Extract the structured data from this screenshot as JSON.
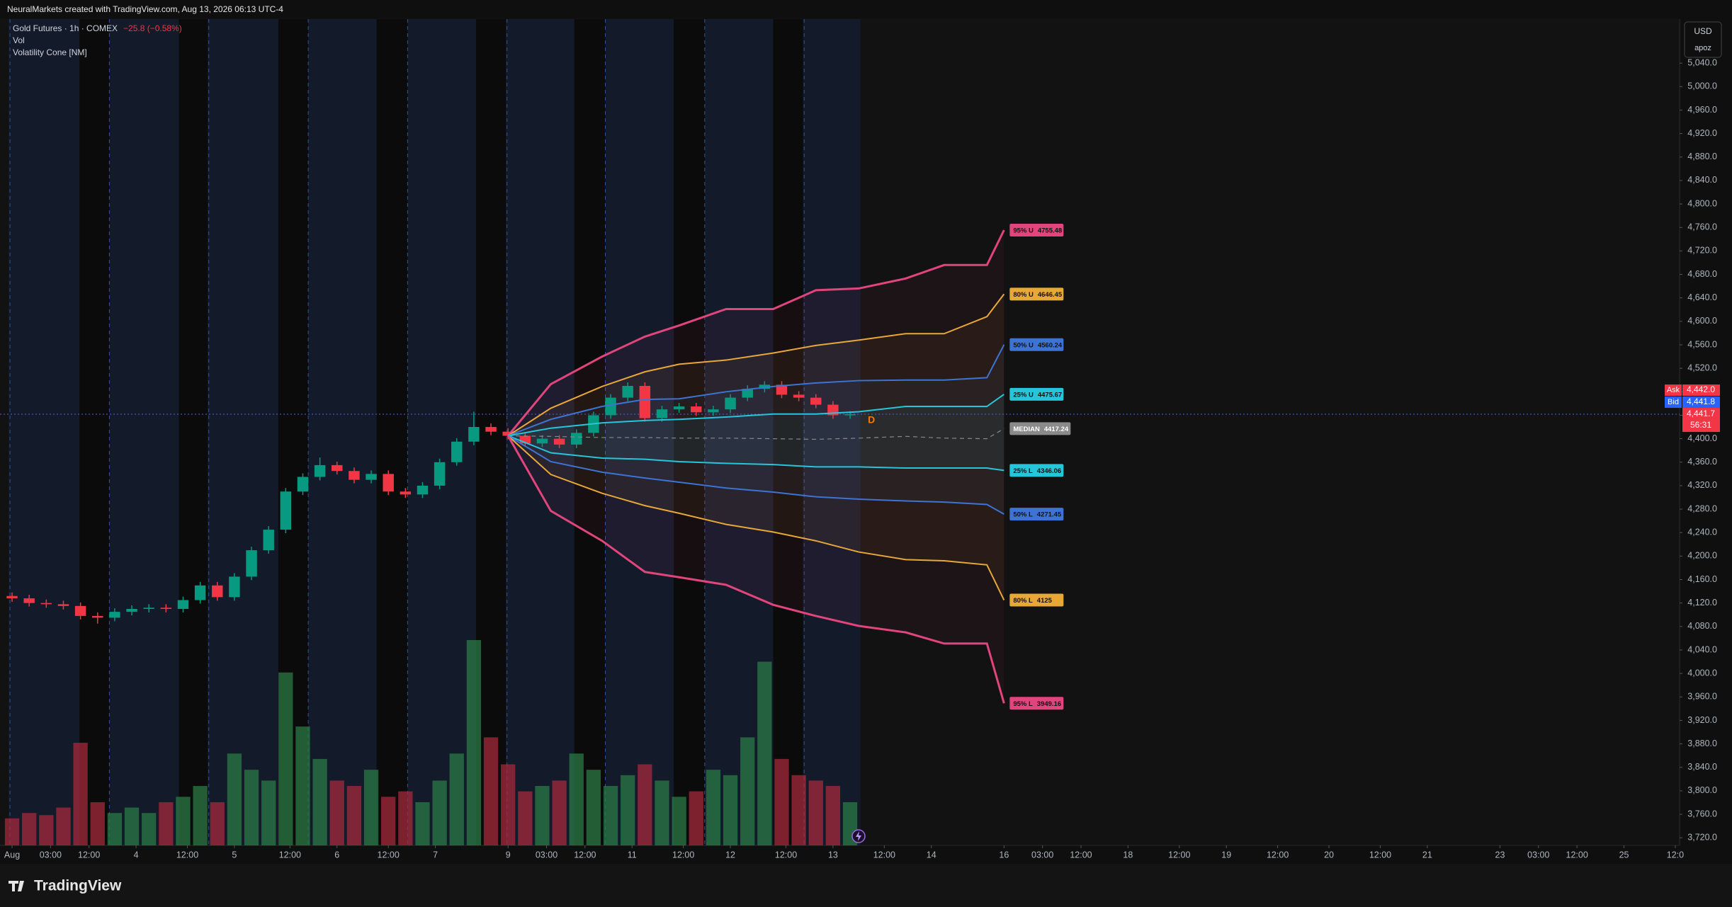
{
  "header": "NeuralMarkets created with TradingView.com, Aug 13, 2026 06:13 UTC-4",
  "legend": {
    "symbol": "Gold Futures · 1h · COMEX",
    "change": "−25.8 (−0.58%)",
    "volume": "Vol",
    "indicator": "Volatility Cone [NM]"
  },
  "currency": "USD",
  "scale_unit": "apoz",
  "footer": "TradingView",
  "chart_data": {
    "type": "candlestick",
    "up_color": "#089981",
    "down_color": "#f23645",
    "x": [
      0,
      4,
      8,
      12,
      16,
      20,
      24,
      28,
      32,
      36,
      40,
      44,
      48,
      52,
      56,
      60,
      64,
      68,
      72,
      76,
      80,
      84,
      88,
      92,
      96,
      100,
      104,
      108,
      112,
      116,
      120,
      124,
      128,
      132,
      136,
      140,
      144,
      148,
      152,
      156,
      160,
      164,
      168,
      172,
      176,
      180,
      184,
      188,
      192,
      196
    ],
    "open": [
      4132,
      4128,
      4120,
      4118,
      4115,
      4098,
      4095,
      4105,
      4110,
      4112,
      4110,
      4125,
      4150,
      4130,
      4165,
      4210,
      4245,
      4310,
      4335,
      4355,
      4345,
      4330,
      4340,
      4310,
      4305,
      4320,
      4360,
      4395,
      4420,
      4412,
      4405,
      4392,
      4400,
      4390,
      4410,
      4440,
      4470,
      4490,
      4435,
      4450,
      4455,
      4445,
      4450,
      4470,
      4485,
      4492,
      4475,
      4470,
      4458,
      4440
    ],
    "high": [
      4138,
      4134,
      4126,
      4124,
      4121,
      4104,
      4111,
      4116,
      4118,
      4118,
      4131,
      4156,
      4156,
      4171,
      4216,
      4251,
      4316,
      4341,
      4368,
      4361,
      4351,
      4346,
      4346,
      4316,
      4326,
      4366,
      4401,
      4446,
      4426,
      4418,
      4411,
      4406,
      4406,
      4416,
      4446,
      4476,
      4496,
      4496,
      4456,
      4461,
      4461,
      4456,
      4476,
      4491,
      4498,
      4498,
      4481,
      4476,
      4464,
      4447
    ],
    "low": [
      4122,
      4114,
      4112,
      4109,
      4092,
      4085,
      4089,
      4099,
      4104,
      4104,
      4104,
      4119,
      4124,
      4124,
      4159,
      4204,
      4239,
      4304,
      4329,
      4339,
      4324,
      4324,
      4304,
      4299,
      4299,
      4314,
      4354,
      4389,
      4406,
      4399,
      4386,
      4386,
      4384,
      4384,
      4404,
      4434,
      4464,
      4429,
      4429,
      4444,
      4439,
      4439,
      4444,
      4464,
      4479,
      4469,
      4464,
      4452,
      4434,
      4434
    ],
    "close": [
      4128,
      4120,
      4118,
      4115,
      4098,
      4095,
      4105,
      4110,
      4112,
      4110,
      4125,
      4150,
      4130,
      4165,
      4210,
      4245,
      4310,
      4335,
      4355,
      4345,
      4330,
      4340,
      4310,
      4305,
      4320,
      4360,
      4395,
      4420,
      4412,
      4405,
      4392,
      4400,
      4390,
      4410,
      4440,
      4470,
      4490,
      4435,
      4450,
      4455,
      4445,
      4450,
      4470,
      4485,
      4492,
      4475,
      4470,
      4458,
      4440,
      4441.7
    ],
    "volume": [
      25,
      30,
      28,
      35,
      95,
      40,
      30,
      35,
      30,
      40,
      45,
      55,
      40,
      85,
      70,
      60,
      160,
      110,
      80,
      60,
      55,
      70,
      45,
      50,
      40,
      60,
      85,
      190,
      100,
      75,
      50,
      55,
      60,
      85,
      70,
      55,
      65,
      75,
      60,
      45,
      50,
      70,
      65,
      100,
      170,
      80,
      65,
      60,
      55,
      40
    ],
    "xlim": [
      -1,
      390
    ],
    "ylim": [
      3707,
      5115
    ],
    "xticks": [
      {
        "value": 0,
        "label": "Aug"
      },
      {
        "value": 9,
        "label": "03:00"
      },
      {
        "value": 18,
        "label": "12:00"
      },
      {
        "value": 29,
        "label": "4"
      },
      {
        "value": 41,
        "label": "12:00"
      },
      {
        "value": 52,
        "label": "5"
      },
      {
        "value": 65,
        "label": "12:00"
      },
      {
        "value": 76,
        "label": "6"
      },
      {
        "value": 88,
        "label": "12:00"
      },
      {
        "value": 99,
        "label": "7"
      },
      {
        "value": 116,
        "label": "9"
      },
      {
        "value": 125,
        "label": "03:00"
      },
      {
        "value": 134,
        "label": "12:00"
      },
      {
        "value": 145,
        "label": "11"
      },
      {
        "value": 157,
        "label": "12:00"
      },
      {
        "value": 168,
        "label": "12"
      },
      {
        "value": 181,
        "label": "12:00"
      },
      {
        "value": 192,
        "label": "13"
      },
      {
        "value": 204,
        "label": "12:00"
      },
      {
        "value": 215,
        "label": "14"
      },
      {
        "value": 232,
        "label": "16"
      },
      {
        "value": 241,
        "label": "03:00"
      },
      {
        "value": 250,
        "label": "12:00"
      },
      {
        "value": 261,
        "label": "18"
      },
      {
        "value": 273,
        "label": "12:00"
      },
      {
        "value": 284,
        "label": "19"
      },
      {
        "value": 296,
        "label": "12:00"
      },
      {
        "value": 308,
        "label": "20"
      },
      {
        "value": 320,
        "label": "12:00"
      },
      {
        "value": 331,
        "label": "21"
      },
      {
        "value": 348,
        "label": "23"
      },
      {
        "value": 357,
        "label": "03:00"
      },
      {
        "value": 366,
        "label": "12:00"
      },
      {
        "value": 377,
        "label": "25"
      },
      {
        "value": 389,
        "label": "12:0"
      }
    ],
    "yticks": [
      {
        "value": 3720,
        "label": "3,720.0"
      },
      {
        "value": 3760,
        "label": "3,760.0"
      },
      {
        "value": 3800,
        "label": "3,800.0"
      },
      {
        "value": 3840,
        "label": "3,840.0"
      },
      {
        "value": 3880,
        "label": "3,880.0"
      },
      {
        "value": 3920,
        "label": "3,920.0"
      },
      {
        "value": 3960,
        "label": "3,960.0"
      },
      {
        "value": 4000,
        "label": "4,000.0"
      },
      {
        "value": 4040,
        "label": "4,040.0"
      },
      {
        "value": 4080,
        "label": "4,080.0"
      },
      {
        "value": 4120,
        "label": "4,120.0"
      },
      {
        "value": 4160,
        "label": "4,160.0"
      },
      {
        "value": 4200,
        "label": "4,200.0"
      },
      {
        "value": 4240,
        "label": "4,240.0"
      },
      {
        "value": 4280,
        "label": "4,280.0"
      },
      {
        "value": 4320,
        "label": "4,320.0"
      },
      {
        "value": 4360,
        "label": "4,360.0"
      },
      {
        "value": 4400,
        "label": "4,400.0"
      },
      {
        "value": 4440,
        "label": "4,440.0"
      },
      {
        "value": 4480,
        "label": "4,480.0"
      },
      {
        "value": 4520,
        "label": "4,520.0"
      },
      {
        "value": 4560,
        "label": "4,560.0"
      },
      {
        "value": 4600,
        "label": "4,600.0"
      },
      {
        "value": 4640,
        "label": "4,640.0"
      },
      {
        "value": 4680,
        "label": "4,680.0"
      },
      {
        "value": 4720,
        "label": "4,720.0"
      },
      {
        "value": 4760,
        "label": "4,760.0"
      },
      {
        "value": 4800,
        "label": "4,800.0"
      },
      {
        "value": 4840,
        "label": "4,840.0"
      },
      {
        "value": 4880,
        "label": "4,880.0"
      },
      {
        "value": 4920,
        "label": "4,920.0"
      },
      {
        "value": 4960,
        "label": "4,960.0"
      },
      {
        "value": 5000,
        "label": "5,000.0"
      },
      {
        "value": 5040,
        "label": "5,040.0"
      }
    ],
    "cone": {
      "x": [
        116,
        126,
        138,
        148,
        156,
        167,
        178,
        188,
        198,
        209,
        218,
        228,
        232
      ],
      "series": [
        {
          "name": "95% U",
          "color": "#e0457b",
          "values": [
            4405,
            4493,
            4540,
            4574,
            4593,
            4621,
            4621,
            4653,
            4656,
            4673,
            4696,
            4696,
            4755.48
          ]
        },
        {
          "name": "80% U",
          "color": "#e8a838",
          "values": [
            4405,
            4452,
            4489,
            4514,
            4527,
            4534,
            4546,
            4559,
            4568,
            4579,
            4579,
            4608,
            4646.45
          ]
        },
        {
          "name": "50% U",
          "color": "#3d74d4",
          "values": [
            4405,
            4433,
            4455,
            4467,
            4468,
            4480,
            4489,
            4495,
            4499,
            4500,
            4500,
            4504,
            4560.24
          ]
        },
        {
          "name": "25% U",
          "color": "#26c6da",
          "values": [
            4405,
            4418,
            4427,
            4431,
            4433,
            4437,
            4442,
            4442,
            4446,
            4455,
            4455,
            4455,
            4475.67
          ]
        },
        {
          "name": "MEDIAN",
          "color": "#8a8a8a",
          "values": [
            4405,
            4404,
            4402,
            4402,
            4401,
            4401,
            4400,
            4399,
            4401,
            4404,
            4401,
            4400,
            4417.24
          ]
        },
        {
          "name": "25% L",
          "color": "#26c6da",
          "values": [
            4405,
            4376,
            4367,
            4365,
            4361,
            4358,
            4356,
            4352,
            4352,
            4350,
            4350,
            4350,
            4346.06
          ]
        },
        {
          "name": "50% L",
          "color": "#3d74d4",
          "values": [
            4405,
            4361,
            4343,
            4333,
            4326,
            4316,
            4309,
            4301,
            4297,
            4294,
            4292,
            4288,
            4271.45
          ]
        },
        {
          "name": "80% L",
          "color": "#e8a838",
          "values": [
            4405,
            4339,
            4307,
            4286,
            4273,
            4254,
            4241,
            4226,
            4207,
            4194,
            4192,
            4185,
            4125
          ]
        },
        {
          "name": "95% L",
          "color": "#e0457b",
          "values": [
            4405,
            4277,
            4226,
            4173,
            4164,
            4151,
            4117,
            4098,
            4081,
            4070,
            4051,
            4051,
            3949.16
          ]
        }
      ]
    },
    "quote": {
      "ask": {
        "name": "Ask",
        "value": 4442.0,
        "label": "4,442.0"
      },
      "bid": {
        "name": "Bid",
        "value": 4441.8,
        "label": "4,441.8"
      },
      "last": {
        "value": 4441.7,
        "label": "4,441.7",
        "countdown": "56:31"
      }
    },
    "marker": {
      "label": "D",
      "x": 201,
      "y": 4431
    }
  }
}
